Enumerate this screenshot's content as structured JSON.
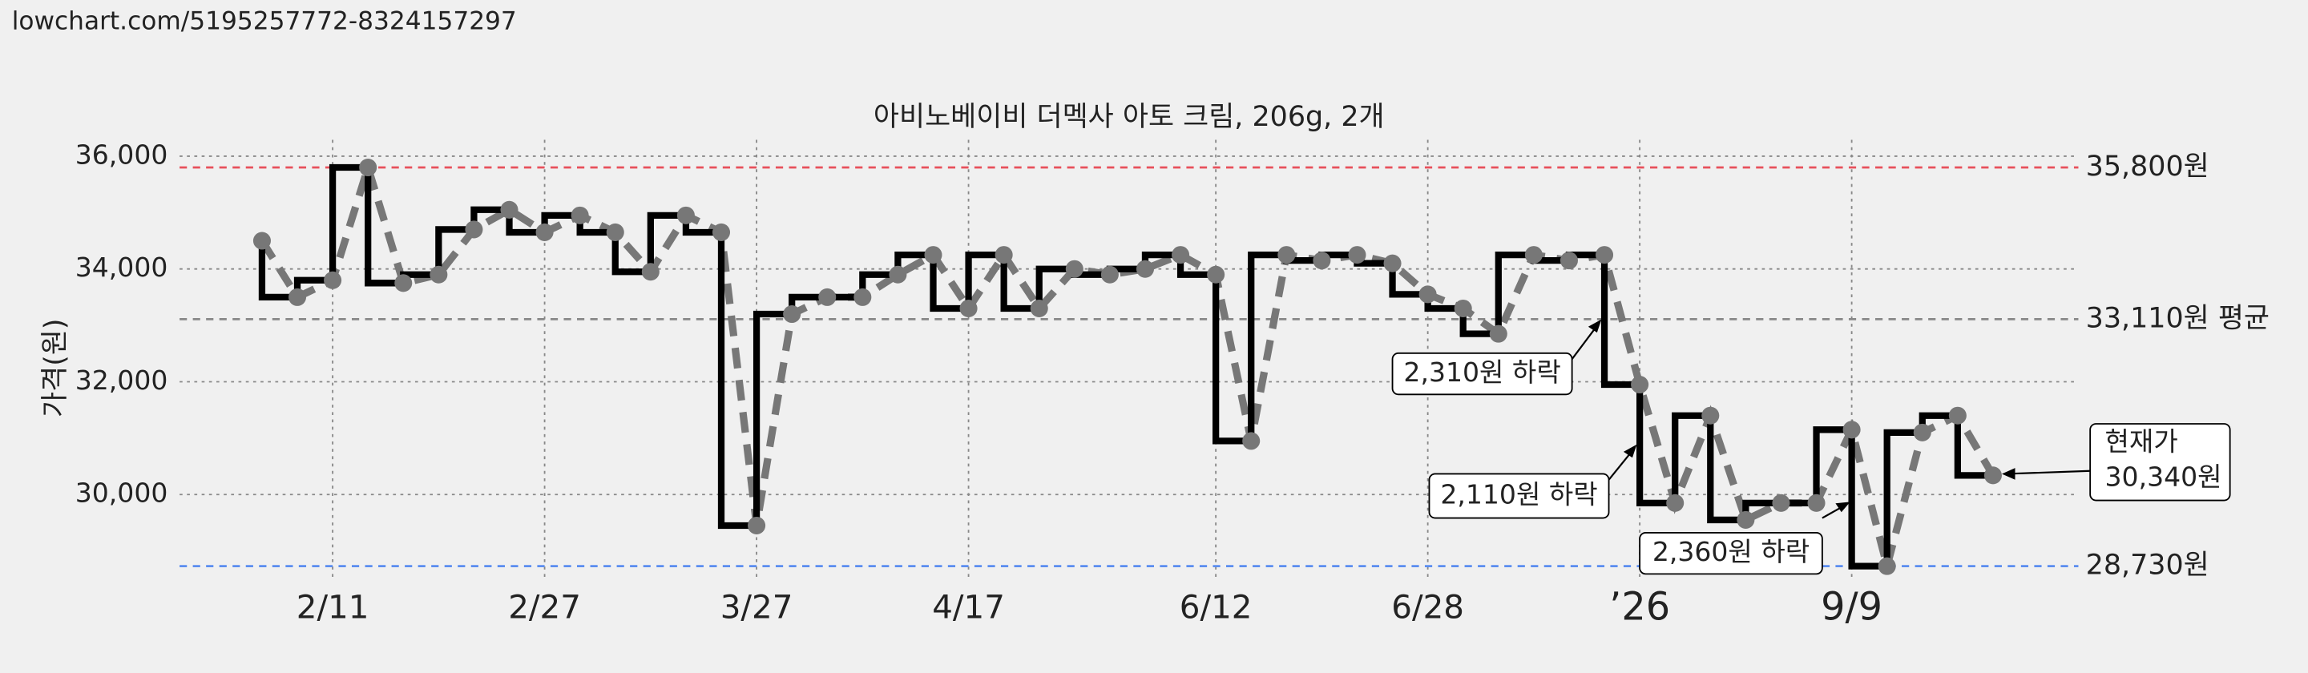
{
  "header": "lowchart.com/5195257772-8324157297",
  "chart_data": {
    "type": "step",
    "title": "아비노베이비 더멕사 아토 크림, 206g, 2개",
    "ylabel": "가격(원)",
    "categories": [
      null,
      null,
      "2/11",
      null,
      null,
      null,
      null,
      null,
      "2/27",
      null,
      null,
      null,
      null,
      null,
      "3/27",
      null,
      null,
      null,
      null,
      null,
      "4/17",
      null,
      null,
      null,
      null,
      null,
      null,
      "6/12",
      null,
      null,
      null,
      null,
      null,
      "6/28",
      null,
      null,
      null,
      null,
      null,
      "’26",
      null,
      null,
      null,
      null,
      null,
      "9/9",
      null,
      null,
      null,
      null
    ],
    "values": [
      34500,
      33500,
      33800,
      35800,
      33750,
      33900,
      34700,
      35050,
      34650,
      34950,
      34650,
      33950,
      34950,
      34650,
      29450,
      33200,
      33500,
      33500,
      33900,
      34250,
      33300,
      34250,
      33300,
      34000,
      33900,
      34000,
      34250,
      33900,
      30950,
      34250,
      34150,
      34250,
      34100,
      33550,
      33300,
      32850,
      34250,
      34150,
      34250,
      31950,
      29850,
      31400,
      29550,
      29850,
      29850,
      31150,
      28730,
      31100,
      31400,
      30340
    ],
    "ylim": [
      28540,
      36290
    ],
    "yticks": [
      {
        "value": 30000,
        "label": "30,000"
      },
      {
        "value": 32000,
        "label": "32,000"
      },
      {
        "value": 34000,
        "label": "34,000"
      },
      {
        "value": 36000,
        "label": "36,000"
      }
    ],
    "grid": true,
    "reference_lines": [
      {
        "value": 35800,
        "label": "35,800원",
        "color": "#e8505b"
      },
      {
        "value": 33110,
        "label": "33,110원 평균",
        "color": "#888888"
      },
      {
        "value": 28730,
        "label": "28,730원",
        "color": "#5b8def"
      }
    ],
    "annotations": [
      "2,310원 하락",
      "2,110원 하락",
      "2,360원 하락",
      "현재가",
      "30,340원"
    ]
  }
}
